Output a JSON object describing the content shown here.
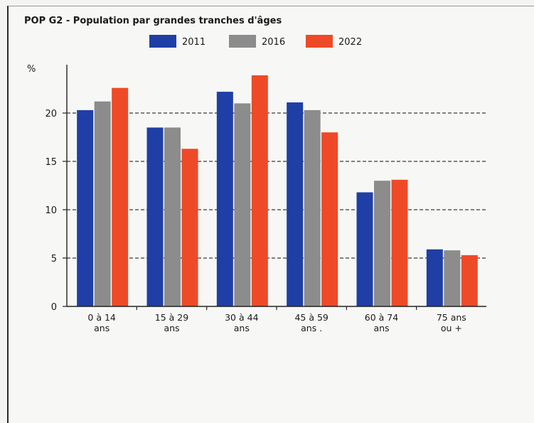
{
  "chart_data": {
    "type": "bar",
    "title": "POP G2 - Population par grandes tranches d'âges",
    "ylabel": "%",
    "xlabel": "",
    "ylim": [
      0,
      25
    ],
    "yticks": [
      0,
      5,
      10,
      15,
      20
    ],
    "grid": "horizontal dashed",
    "legend_position": "top",
    "categories": [
      [
        "0 à 14",
        "ans"
      ],
      [
        "15 à 29",
        "ans"
      ],
      [
        "30 à 44",
        "ans"
      ],
      [
        "45 à 59",
        "ans ."
      ],
      [
        "60 à 74",
        "ans"
      ],
      [
        "75 ans",
        "ou +"
      ]
    ],
    "series": [
      {
        "name": "2011",
        "color": "#1f3fa6",
        "values": [
          20.3,
          18.5,
          22.2,
          21.1,
          11.8,
          5.9
        ]
      },
      {
        "name": "2016",
        "color": "#8c8c8c",
        "values": [
          21.2,
          18.5,
          21.0,
          20.3,
          13.0,
          5.8
        ]
      },
      {
        "name": "2022",
        "color": "#ee4a28",
        "values": [
          22.6,
          16.3,
          23.9,
          18.0,
          13.1,
          5.3
        ]
      }
    ]
  }
}
